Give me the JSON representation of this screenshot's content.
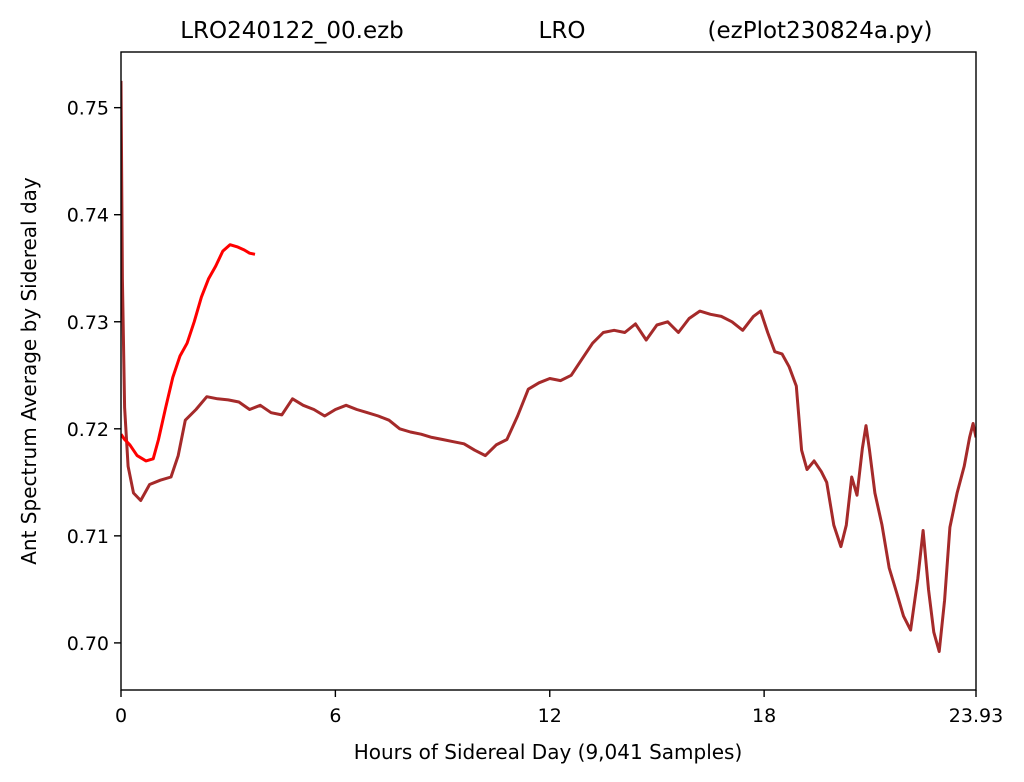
{
  "chart_data": {
    "type": "line",
    "title_parts": [
      "LRO240122_00.ezb",
      "LRO",
      "(ezPlot230824a.py)"
    ],
    "xlabel": "Hours of Sidereal Day  (9,041 Samples)",
    "ylabel": "Ant Spectrum Average by Sidereal day",
    "xlim": [
      0,
      23.93
    ],
    "ylim": [
      0.6956,
      0.7552
    ],
    "x_ticks": [
      0,
      6,
      12,
      18,
      23.93
    ],
    "x_tick_labels": [
      "0",
      "6",
      "12",
      "18",
      "23.93"
    ],
    "y_ticks": [
      0.7,
      0.71,
      0.72,
      0.73,
      0.74,
      0.75
    ],
    "y_tick_labels": [
      "0.70",
      "0.71",
      "0.72",
      "0.73",
      "0.74",
      "0.75"
    ],
    "grid": false,
    "legend": false,
    "series": [
      {
        "color": "#a52a2a",
        "points": [
          [
            0.0,
            0.7525
          ],
          [
            0.04,
            0.734
          ],
          [
            0.1,
            0.722
          ],
          [
            0.2,
            0.7165
          ],
          [
            0.35,
            0.714
          ],
          [
            0.55,
            0.7133
          ],
          [
            0.8,
            0.7148
          ],
          [
            1.1,
            0.7152
          ],
          [
            1.4,
            0.7155
          ],
          [
            1.6,
            0.7175
          ],
          [
            1.8,
            0.7208
          ],
          [
            2.1,
            0.7218
          ],
          [
            2.4,
            0.723
          ],
          [
            2.7,
            0.7228
          ],
          [
            3.0,
            0.7227
          ],
          [
            3.3,
            0.7225
          ],
          [
            3.6,
            0.7218
          ],
          [
            3.9,
            0.7222
          ],
          [
            4.2,
            0.7215
          ],
          [
            4.5,
            0.7213
          ],
          [
            4.8,
            0.7228
          ],
          [
            5.1,
            0.7222
          ],
          [
            5.4,
            0.7218
          ],
          [
            5.7,
            0.7212
          ],
          [
            6.0,
            0.7218
          ],
          [
            6.3,
            0.7222
          ],
          [
            6.6,
            0.7218
          ],
          [
            6.9,
            0.7215
          ],
          [
            7.2,
            0.7212
          ],
          [
            7.5,
            0.7208
          ],
          [
            7.8,
            0.72
          ],
          [
            8.1,
            0.7197
          ],
          [
            8.4,
            0.7195
          ],
          [
            8.7,
            0.7192
          ],
          [
            9.0,
            0.719
          ],
          [
            9.3,
            0.7188
          ],
          [
            9.6,
            0.7186
          ],
          [
            9.9,
            0.718
          ],
          [
            10.2,
            0.7175
          ],
          [
            10.5,
            0.7185
          ],
          [
            10.8,
            0.719
          ],
          [
            11.1,
            0.7212
          ],
          [
            11.4,
            0.7237
          ],
          [
            11.7,
            0.7243
          ],
          [
            12.0,
            0.7247
          ],
          [
            12.3,
            0.7245
          ],
          [
            12.6,
            0.725
          ],
          [
            12.9,
            0.7265
          ],
          [
            13.2,
            0.728
          ],
          [
            13.5,
            0.729
          ],
          [
            13.8,
            0.7292
          ],
          [
            14.1,
            0.729
          ],
          [
            14.4,
            0.7298
          ],
          [
            14.7,
            0.7283
          ],
          [
            15.0,
            0.7297
          ],
          [
            15.3,
            0.73
          ],
          [
            15.6,
            0.729
          ],
          [
            15.9,
            0.7303
          ],
          [
            16.2,
            0.731
          ],
          [
            16.5,
            0.7307
          ],
          [
            16.8,
            0.7305
          ],
          [
            17.1,
            0.73
          ],
          [
            17.4,
            0.7292
          ],
          [
            17.7,
            0.7305
          ],
          [
            17.9,
            0.731
          ],
          [
            18.1,
            0.729
          ],
          [
            18.3,
            0.7272
          ],
          [
            18.5,
            0.727
          ],
          [
            18.7,
            0.7258
          ],
          [
            18.9,
            0.724
          ],
          [
            19.05,
            0.718
          ],
          [
            19.2,
            0.7162
          ],
          [
            19.4,
            0.717
          ],
          [
            19.6,
            0.716
          ],
          [
            19.75,
            0.715
          ],
          [
            19.95,
            0.711
          ],
          [
            20.15,
            0.709
          ],
          [
            20.3,
            0.711
          ],
          [
            20.45,
            0.7155
          ],
          [
            20.6,
            0.7138
          ],
          [
            20.75,
            0.7182
          ],
          [
            20.85,
            0.7203
          ],
          [
            20.95,
            0.718
          ],
          [
            21.1,
            0.714
          ],
          [
            21.3,
            0.711
          ],
          [
            21.5,
            0.707
          ],
          [
            21.7,
            0.7048
          ],
          [
            21.9,
            0.7025
          ],
          [
            22.1,
            0.7012
          ],
          [
            22.3,
            0.706
          ],
          [
            22.45,
            0.7105
          ],
          [
            22.6,
            0.705
          ],
          [
            22.75,
            0.701
          ],
          [
            22.9,
            0.6992
          ],
          [
            23.05,
            0.704
          ],
          [
            23.2,
            0.7108
          ],
          [
            23.4,
            0.714
          ],
          [
            23.6,
            0.7165
          ],
          [
            23.75,
            0.7192
          ],
          [
            23.85,
            0.7205
          ],
          [
            23.93,
            0.7192
          ]
        ]
      },
      {
        "color": "#ff0000",
        "points": [
          [
            0.0,
            0.7195
          ],
          [
            0.1,
            0.719
          ],
          [
            0.25,
            0.7185
          ],
          [
            0.45,
            0.7175
          ],
          [
            0.7,
            0.717
          ],
          [
            0.9,
            0.7172
          ],
          [
            1.05,
            0.719
          ],
          [
            1.25,
            0.722
          ],
          [
            1.45,
            0.7248
          ],
          [
            1.65,
            0.7268
          ],
          [
            1.85,
            0.728
          ],
          [
            2.05,
            0.73
          ],
          [
            2.25,
            0.7323
          ],
          [
            2.45,
            0.734
          ],
          [
            2.65,
            0.7352
          ],
          [
            2.85,
            0.7366
          ],
          [
            3.05,
            0.7372
          ],
          [
            3.25,
            0.737
          ],
          [
            3.45,
            0.7367
          ],
          [
            3.6,
            0.7364
          ],
          [
            3.75,
            0.7363
          ]
        ]
      }
    ]
  }
}
